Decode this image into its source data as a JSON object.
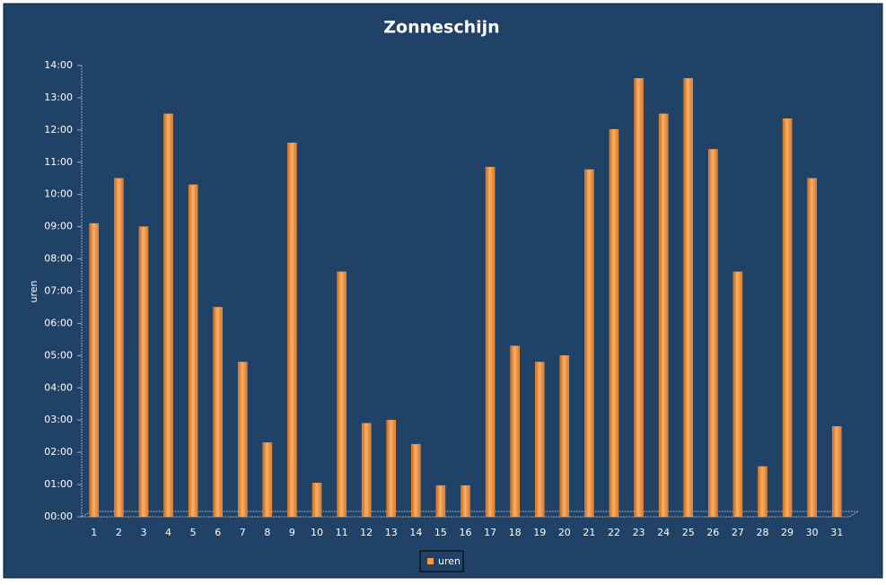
{
  "chart_data": {
    "type": "bar",
    "title": "Zonneschijn",
    "y_label": "uren",
    "categories": [
      "1",
      "2",
      "3",
      "4",
      "5",
      "6",
      "7",
      "8",
      "9",
      "10",
      "11",
      "12",
      "13",
      "14",
      "15",
      "16",
      "17",
      "18",
      "19",
      "20",
      "21",
      "22",
      "23",
      "24",
      "25",
      "26",
      "27",
      "28",
      "29",
      "30",
      "31"
    ],
    "series": [
      {
        "name": "uren",
        "color": "#f59a43",
        "values": [
          9.1,
          10.5,
          9.0,
          12.5,
          10.3,
          6.5,
          4.8,
          2.3,
          11.6,
          1.05,
          7.6,
          2.9,
          3.0,
          2.25,
          0.97,
          0.97,
          10.85,
          5.3,
          4.8,
          5.0,
          10.77,
          12.02,
          13.6,
          12.5,
          13.6,
          11.4,
          7.6,
          1.56,
          12.35,
          10.5,
          2.8
        ]
      }
    ],
    "ylim": [
      0,
      14
    ],
    "yticks": [
      {
        "value": 0,
        "label": "00:00"
      },
      {
        "value": 1,
        "label": "01:00"
      },
      {
        "value": 2,
        "label": "02:00"
      },
      {
        "value": 3,
        "label": "03:00"
      },
      {
        "value": 4,
        "label": "04:00"
      },
      {
        "value": 5,
        "label": "05:00"
      },
      {
        "value": 6,
        "label": "06:00"
      },
      {
        "value": 7,
        "label": "07:00"
      },
      {
        "value": 8,
        "label": "08:00"
      },
      {
        "value": 9,
        "label": "09:00"
      },
      {
        "value": 10,
        "label": "10:00"
      },
      {
        "value": 11,
        "label": "11:00"
      },
      {
        "value": 12,
        "label": "12:00"
      },
      {
        "value": 13,
        "label": "13:00"
      },
      {
        "value": 14,
        "label": "14:00"
      }
    ],
    "grid": false,
    "legend": "bottom"
  }
}
